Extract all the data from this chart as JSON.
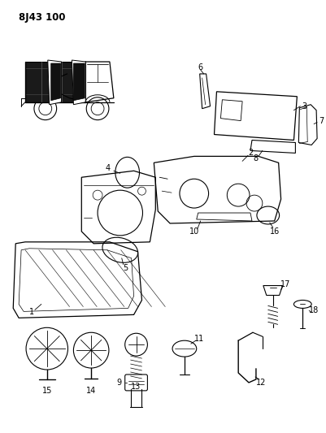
{
  "title": "8J43 100",
  "bg_color": "#ffffff",
  "fig_width": 4.01,
  "fig_height": 5.33,
  "dpi": 100
}
